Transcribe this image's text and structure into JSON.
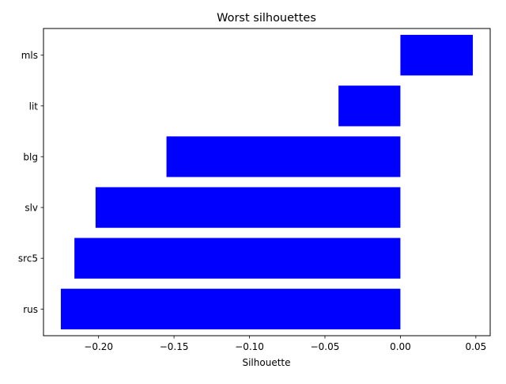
{
  "chart_data": {
    "type": "bar",
    "orientation": "horizontal",
    "title": "Worst silhouettes",
    "xlabel": "Silhouette",
    "ylabel": "",
    "categories": [
      "mls",
      "lit",
      "blg",
      "slv",
      "src5",
      "rus"
    ],
    "values": [
      0.048,
      -0.041,
      -0.155,
      -0.202,
      -0.216,
      -0.225
    ],
    "xlim": [
      -0.2365,
      0.0595
    ],
    "xticks": [
      -0.2,
      -0.15,
      -0.1,
      -0.05,
      0.0,
      0.05
    ],
    "xtick_labels": [
      "−0.20",
      "−0.15",
      "−0.10",
      "−0.05",
      "0.00",
      "0.05"
    ],
    "bar_color": "#0000ff",
    "grid": false,
    "legend": "none"
  }
}
